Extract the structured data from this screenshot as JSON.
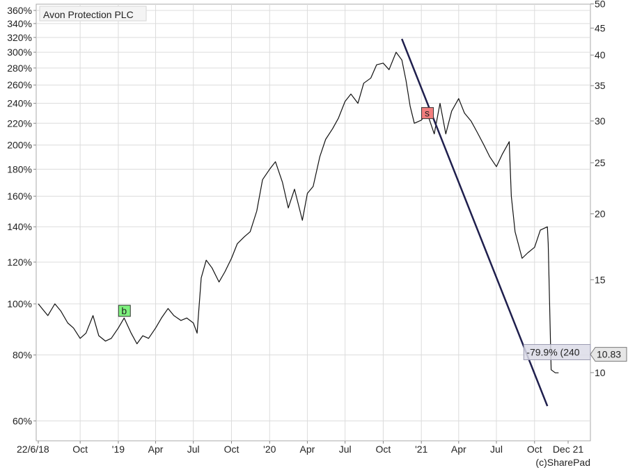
{
  "chart_data": {
    "type": "line",
    "title": "Avon Protection PLC",
    "copyright": "(c)SharePad",
    "x_axis": {
      "ticks": [
        "22/6/18",
        "Oct",
        "'19",
        "Apr",
        "Jul",
        "Oct",
        "'20",
        "Apr",
        "Jul",
        "Oct",
        "'21",
        "Apr",
        "Jul",
        "Oct",
        "Dec 21"
      ],
      "tick_dates": [
        "2018-06-22",
        "2018-10-01",
        "2019-01-01",
        "2019-04-01",
        "2019-07-01",
        "2019-10-01",
        "2020-01-01",
        "2020-04-01",
        "2020-07-01",
        "2020-10-01",
        "2021-01-01",
        "2021-04-01",
        "2021-07-01",
        "2021-10-01",
        "2021-12-21"
      ],
      "range": [
        "2018-06-22",
        "2021-12-21"
      ]
    },
    "y_left": {
      "scale": "log",
      "unit": "%",
      "ticks": [
        "360%",
        "340%",
        "320%",
        "300%",
        "280%",
        "260%",
        "240%",
        "220%",
        "200%",
        "180%",
        "160%",
        "140%",
        "120%",
        "100%",
        "80%",
        "60%"
      ],
      "tick_values": [
        360,
        340,
        320,
        300,
        280,
        260,
        240,
        220,
        200,
        180,
        160,
        140,
        120,
        100,
        80,
        60
      ],
      "range": [
        55,
        370
      ]
    },
    "y_right": {
      "scale": "log",
      "ticks": [
        "50",
        "45",
        "40",
        "35",
        "30",
        "25",
        "20",
        "15",
        "10"
      ],
      "tick_values": [
        50,
        45,
        40,
        35,
        30,
        25,
        20,
        15,
        10
      ]
    },
    "grid": true,
    "series": [
      {
        "color": "#111111",
        "x": [
          "2018-06-22",
          "2018-07-01",
          "2018-07-15",
          "2018-08-01",
          "2018-08-15",
          "2018-09-01",
          "2018-09-15",
          "2018-10-01",
          "2018-10-15",
          "2018-11-01",
          "2018-11-15",
          "2018-12-01",
          "2018-12-15",
          "2019-01-01",
          "2019-01-15",
          "2019-02-01",
          "2019-02-15",
          "2019-03-01",
          "2019-03-15",
          "2019-04-01",
          "2019-04-15",
          "2019-05-01",
          "2019-05-15",
          "2019-06-01",
          "2019-06-15",
          "2019-07-01",
          "2019-07-10",
          "2019-07-20",
          "2019-08-01",
          "2019-08-15",
          "2019-09-01",
          "2019-09-15",
          "2019-10-01",
          "2019-10-15",
          "2019-11-01",
          "2019-11-15",
          "2019-12-01",
          "2019-12-15",
          "2020-01-01",
          "2020-01-15",
          "2020-02-01",
          "2020-02-15",
          "2020-03-01",
          "2020-03-20",
          "2020-04-01",
          "2020-04-15",
          "2020-05-01",
          "2020-05-15",
          "2020-06-01",
          "2020-06-15",
          "2020-07-01",
          "2020-07-15",
          "2020-08-01",
          "2020-08-15",
          "2020-09-01",
          "2020-09-15",
          "2020-10-01",
          "2020-10-15",
          "2020-11-01",
          "2020-11-15",
          "2020-11-25",
          "2020-12-05",
          "2020-12-15",
          "2021-01-01",
          "2021-01-15",
          "2021-02-01",
          "2021-02-15",
          "2021-03-01",
          "2021-03-15",
          "2021-04-01",
          "2021-04-15",
          "2021-05-01",
          "2021-05-15",
          "2021-06-01",
          "2021-06-15",
          "2021-07-01",
          "2021-07-15",
          "2021-08-01",
          "2021-08-06",
          "2021-08-15",
          "2021-09-01",
          "2021-09-15",
          "2021-10-01",
          "2021-10-15",
          "2021-11-01",
          "2021-11-03",
          "2021-11-10",
          "2021-11-20",
          "2021-11-28"
        ],
        "y": [
          100,
          98,
          95,
          100,
          97,
          92,
          90,
          86,
          88,
          95,
          87,
          85,
          86,
          90,
          94,
          88,
          84,
          87,
          86,
          90,
          94,
          98,
          95,
          93,
          94,
          92,
          88,
          112,
          121,
          117,
          110,
          115,
          122,
          130,
          134,
          137,
          150,
          172,
          180,
          186,
          170,
          152,
          165,
          144,
          162,
          167,
          190,
          205,
          215,
          225,
          242,
          250,
          240,
          262,
          268,
          284,
          286,
          278,
          300,
          290,
          265,
          237,
          220,
          223,
          230,
          210,
          240,
          210,
          232,
          245,
          230,
          222,
          212,
          200,
          190,
          182,
          192,
          203,
          160,
          137,
          122,
          125,
          128,
          138,
          140,
          130,
          75,
          74,
          74
        ]
      },
      {
        "name": "trend",
        "color": "#1f1f4d",
        "x": [
          "2020-11-15",
          "2021-11-01"
        ],
        "y": [
          318,
          64
        ]
      }
    ],
    "annotations": [
      {
        "text": "b",
        "x": "2019-01-15",
        "y": 97,
        "color": "#7ef27e"
      },
      {
        "text": "s",
        "x": "2021-01-15",
        "y": 230,
        "color": "#f27e7e"
      },
      {
        "text": "-79.9% (240",
        "x": "2021-09-05",
        "y": 81,
        "color": "#dcdce8"
      },
      {
        "text": "10.83",
        "side": "right",
        "value": 10.83,
        "color": "#e6e6e6"
      }
    ]
  }
}
